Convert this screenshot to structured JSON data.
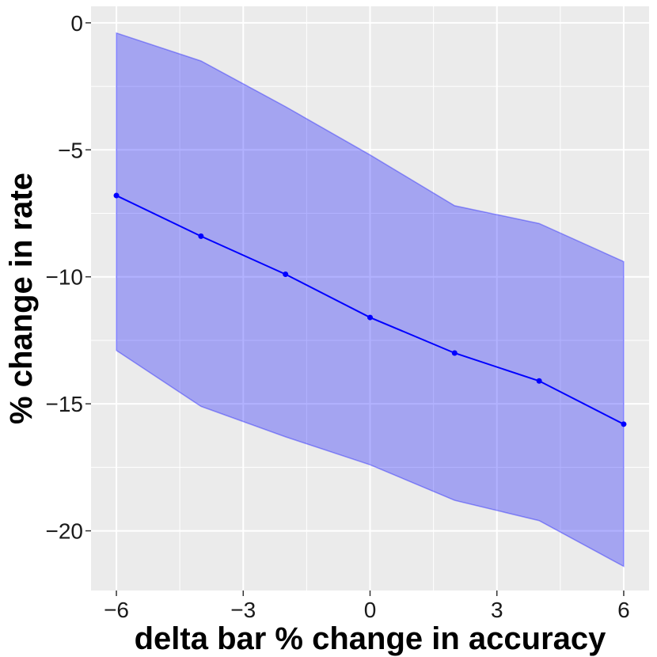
{
  "chart_data": {
    "type": "line",
    "title": "",
    "xlabel": "delta bar % change in accuracy",
    "ylabel": "% change in rate",
    "xlim": [
      -6.6,
      6.6
    ],
    "ylim": [
      -22.35,
      0.65
    ],
    "x_ticks": [
      -6,
      -3,
      0,
      3,
      6
    ],
    "x_tick_labels": [
      "−6",
      "−3",
      "0",
      "3",
      "6"
    ],
    "y_ticks": [
      0,
      -5,
      -10,
      -15,
      -20
    ],
    "y_tick_labels": [
      "0",
      "−5",
      "−10",
      "−15",
      "−20"
    ],
    "grid": true,
    "x": [
      -6,
      -4,
      -2,
      0,
      2,
      4,
      6
    ],
    "series": [
      {
        "values": [
          -6.8,
          -8.4,
          -9.9,
          -11.6,
          -13.0,
          -14.1,
          -15.8
        ]
      }
    ],
    "band_upper": [
      -0.4,
      -1.5,
      -3.3,
      -5.2,
      -7.2,
      -7.9,
      -9.4
    ],
    "band_lower": [
      -12.9,
      -15.1,
      -16.3,
      -17.4,
      -18.8,
      -19.6,
      -21.4
    ],
    "colors": {
      "line": "#0000ff",
      "band_fill": "#0000ff",
      "panel_background": "#ebebeb",
      "gridline": "#ffffff"
    }
  }
}
